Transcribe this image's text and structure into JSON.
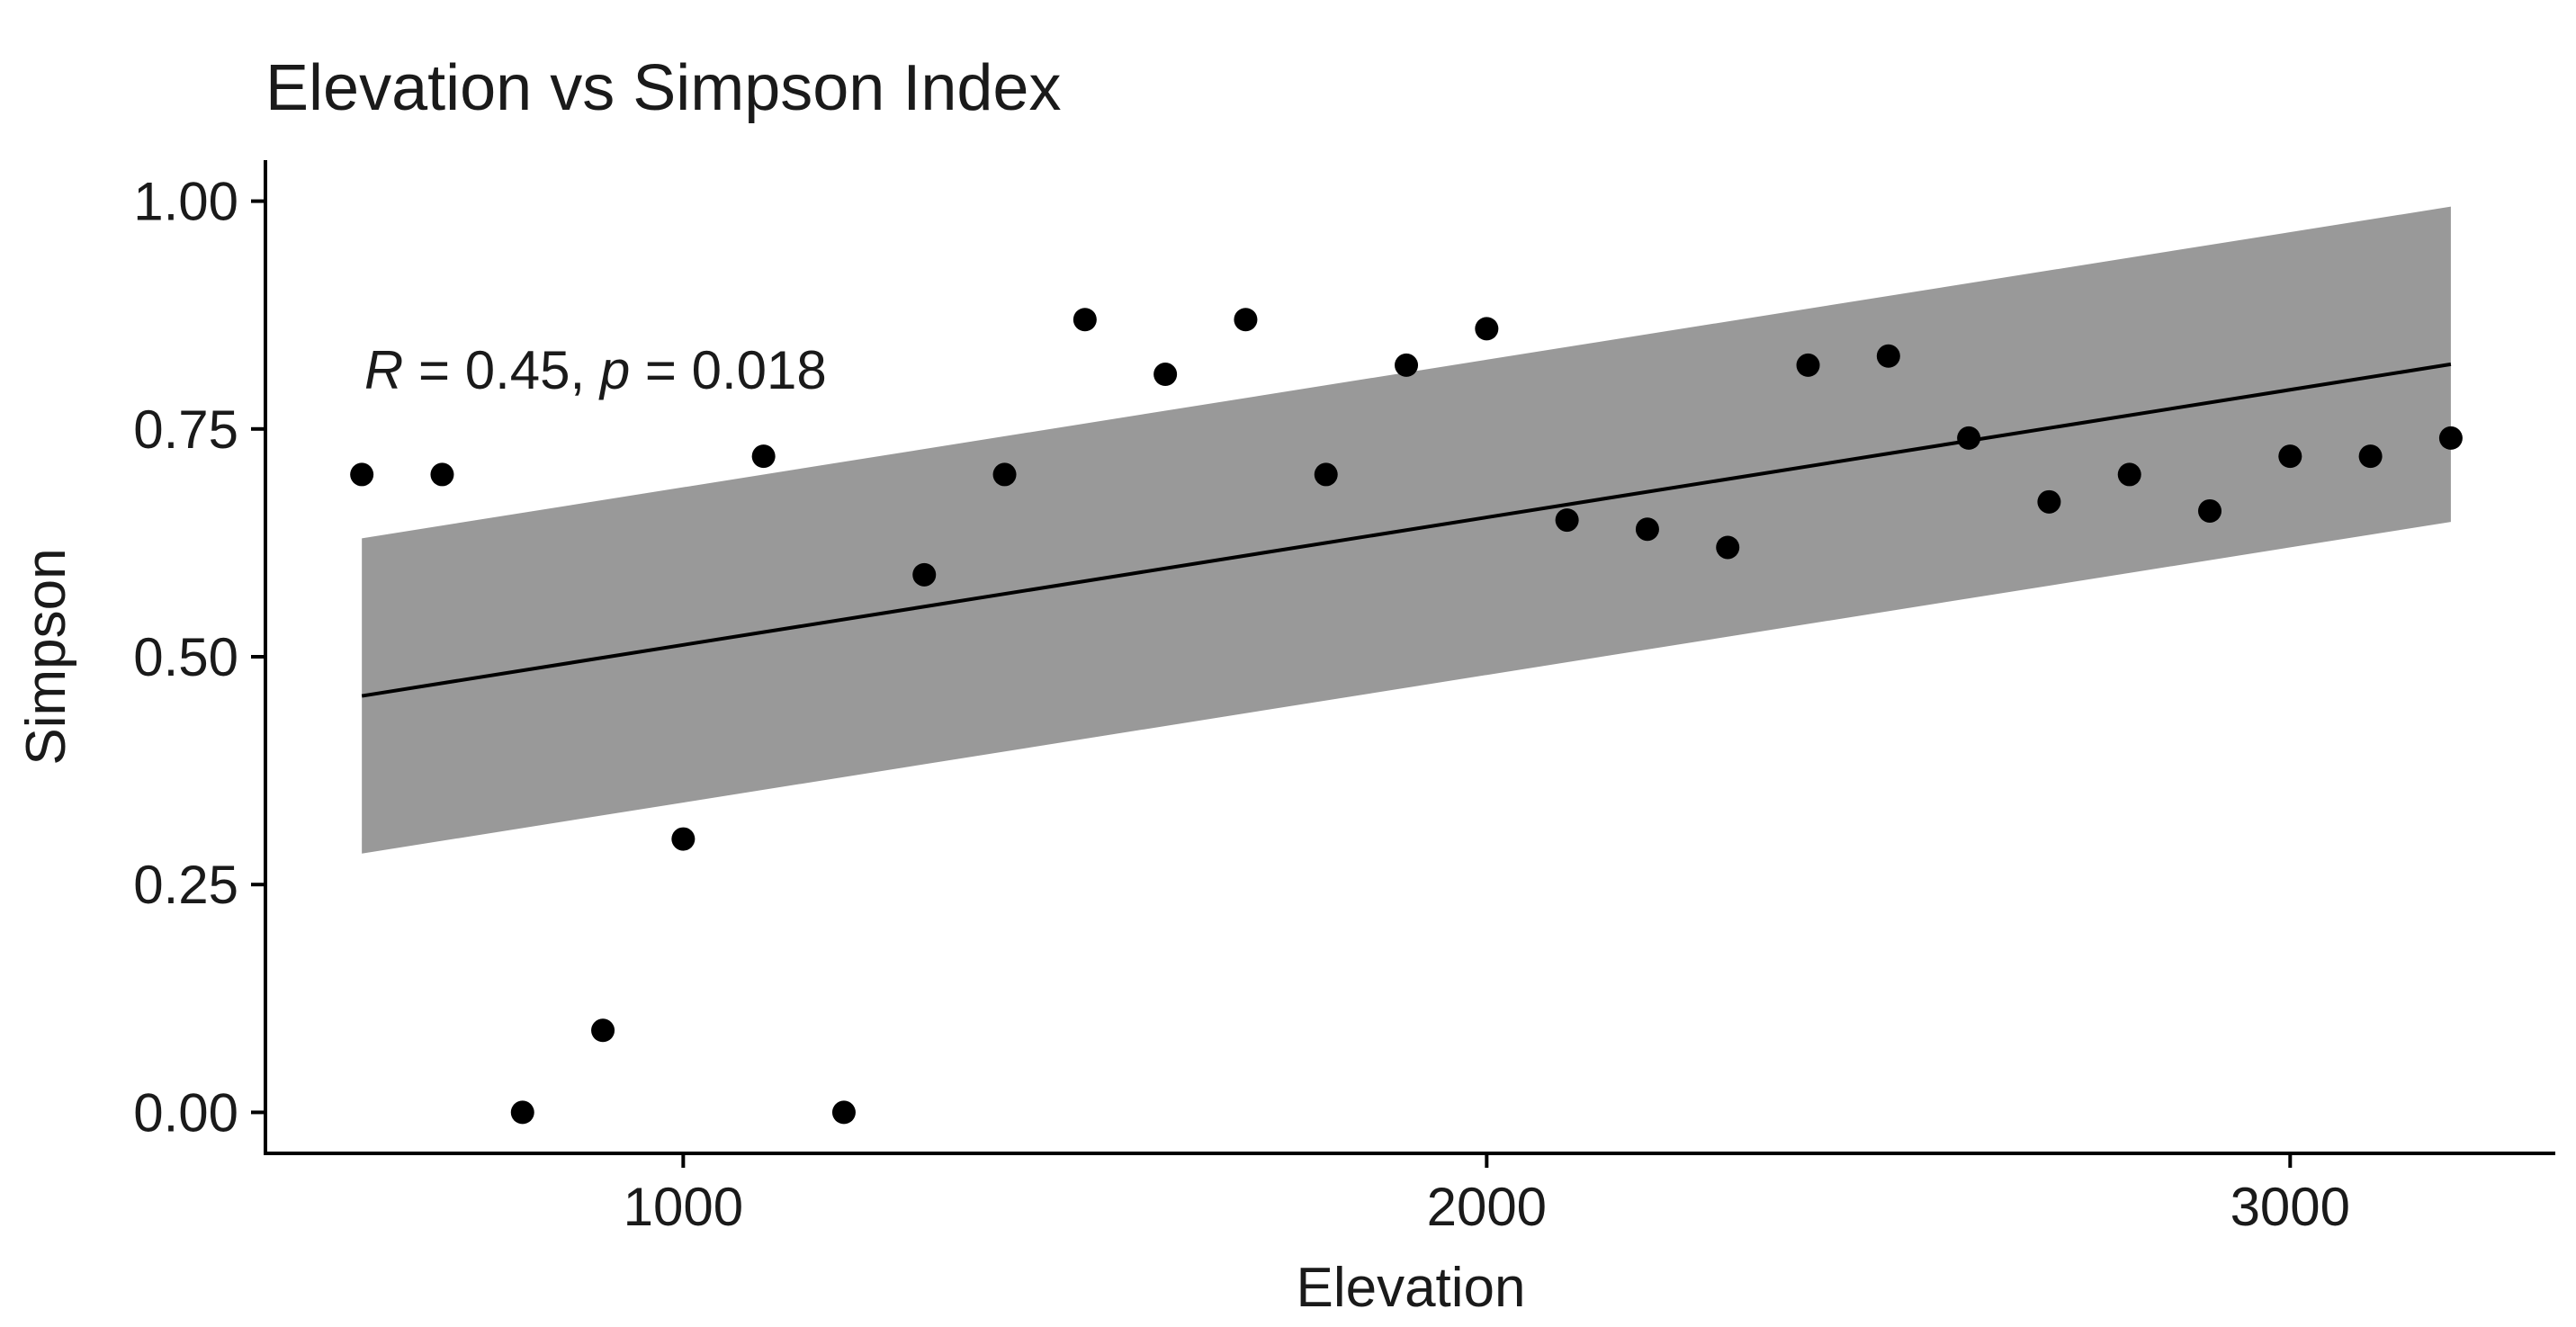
{
  "chart_data": {
    "type": "scatter",
    "title": "Elevation vs Simpson Index",
    "xlabel": "Elevation",
    "ylabel": "Simpson",
    "xlim": [
      480,
      3330
    ],
    "ylim": [
      -0.045,
      1.045
    ],
    "x_ticks": [
      1000,
      2000,
      3000
    ],
    "x_tick_labels": [
      "1000",
      "2000",
      "3000"
    ],
    "y_ticks": [
      0,
      0.25,
      0.5,
      0.75,
      1.0
    ],
    "y_tick_labels": [
      "0.00",
      "0.25",
      "0.50",
      "0.75",
      "1.00"
    ],
    "grid": false,
    "annotation": {
      "r_symbol": "R",
      "r_text": " = 0.45, ",
      "p_symbol": "p",
      "p_text": " = 0.018",
      "x": 600,
      "y": 0.8
    },
    "points": {
      "x": [
        600,
        700,
        800,
        900,
        1000,
        1100,
        1200,
        1300,
        1400,
        1500,
        1600,
        1700,
        1800,
        1900,
        2000,
        2100,
        2200,
        2300,
        2400,
        2500,
        2600,
        2700,
        2800,
        2900,
        3000,
        3100,
        3200
      ],
      "y": [
        0.7,
        0.7,
        0.0,
        0.09,
        0.3,
        0.72,
        0.0,
        0.59,
        0.7,
        0.87,
        0.81,
        0.87,
        0.7,
        0.82,
        0.86,
        0.65,
        0.64,
        0.62,
        0.82,
        0.83,
        0.74,
        0.67,
        0.7,
        0.66,
        0.72,
        0.72,
        0.74
      ]
    },
    "fit": {
      "method": "linear",
      "x": [
        600,
        3200
      ],
      "y": [
        0.457,
        0.821
      ],
      "ci_lower": [
        0.284,
        0.648
      ],
      "ci_upper": [
        0.63,
        0.994
      ]
    },
    "colors": {
      "points": "#000000",
      "line": "#000000",
      "ribbon": "#999999",
      "axis": "#000000",
      "text": "#1a1a1a"
    }
  }
}
